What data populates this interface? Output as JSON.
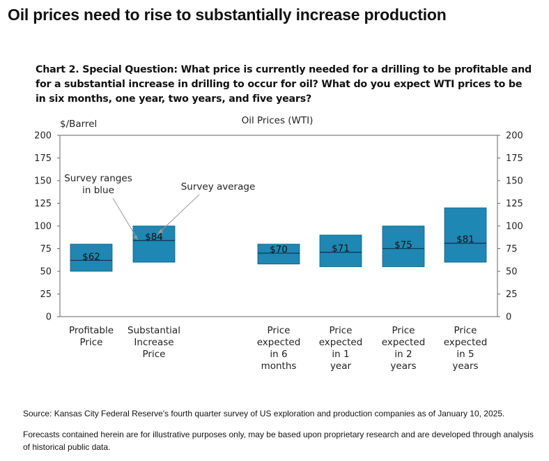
{
  "headline": "Oil prices need to rise to substantially increase production",
  "chart_data": {
    "type": "floating-bar",
    "title": "Chart 2. Special Question: What price is currently needed for a drilling to be profitable and for a substantial increase in drilling to occur for oil? What do you expect WTI prices to be in six months, one year, two years, and five years?",
    "series_label": "Oil Prices (WTI)",
    "ylabel": "$/Barrel",
    "ylim": [
      0,
      200
    ],
    "yticks": [
      0,
      25,
      50,
      75,
      100,
      125,
      150,
      175,
      200
    ],
    "bar_color": "#1f87b3",
    "categories": [
      {
        "lines": [
          "Profitable",
          "Price"
        ],
        "low": 50,
        "high": 80,
        "avg": 62,
        "label": "$62"
      },
      {
        "lines": [
          "Substantial",
          "Increase",
          "Price"
        ],
        "low": 60,
        "high": 100,
        "avg": 84,
        "label": "$84"
      },
      {
        "lines": [
          "Price",
          "expected",
          "in 6",
          "months"
        ],
        "low": 58,
        "high": 80,
        "avg": 70,
        "label": "$70"
      },
      {
        "lines": [
          "Price",
          "expected",
          "in 1",
          "year"
        ],
        "low": 55,
        "high": 90,
        "avg": 71,
        "label": "$71"
      },
      {
        "lines": [
          "Price",
          "expected",
          "in 2",
          "years"
        ],
        "low": 55,
        "high": 100,
        "avg": 75,
        "label": "$75"
      },
      {
        "lines": [
          "Price",
          "expected",
          "in 5",
          "years"
        ],
        "low": 60,
        "high": 120,
        "avg": 81,
        "label": "$81"
      }
    ],
    "annotations": [
      {
        "lines": [
          "Survey ranges",
          "in blue"
        ]
      },
      {
        "lines": [
          "Survey average"
        ]
      }
    ]
  },
  "source": "Source: Kansas City Federal Reserve's fourth quarter survey of US exploration and production companies as of January 10, 2025.",
  "disclaimer": "Forecasts contained herein are for illustrative purposes only, may be based upon proprietary research and are developed through analysis of historical public data."
}
